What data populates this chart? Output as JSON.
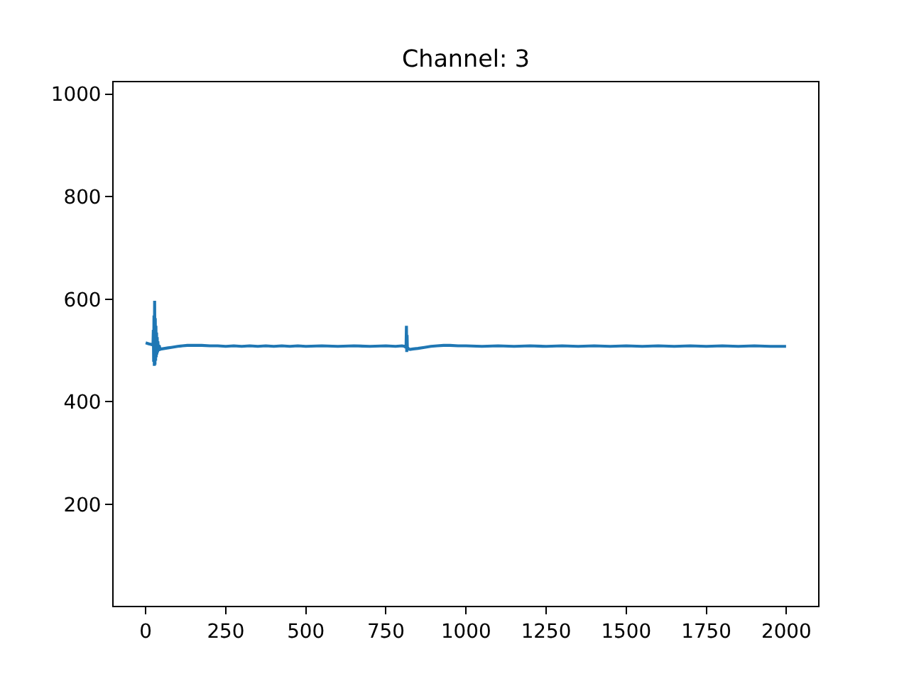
{
  "chart_data": {
    "type": "line",
    "title": "Channel: 3",
    "x": [
      0,
      5,
      10,
      15,
      20,
      23,
      24,
      25,
      26,
      27,
      28,
      29,
      30,
      31,
      32,
      33,
      34,
      35,
      36,
      37,
      38,
      40,
      42,
      45,
      50,
      60,
      70,
      80,
      90,
      100,
      115,
      130,
      150,
      175,
      200,
      225,
      250,
      275,
      300,
      325,
      350,
      375,
      400,
      425,
      450,
      475,
      500,
      550,
      600,
      650,
      700,
      750,
      780,
      800,
      808,
      812,
      813,
      814,
      815,
      816,
      817,
      818,
      820,
      825,
      835,
      850,
      870,
      890,
      910,
      930,
      950,
      975,
      1000,
      1050,
      1100,
      1150,
      1200,
      1250,
      1300,
      1350,
      1400,
      1450,
      1500,
      1550,
      1600,
      1650,
      1700,
      1750,
      1800,
      1850,
      1900,
      1950,
      1999
    ],
    "series": [
      {
        "color": "#1f77b4",
        "values": [
          515,
          514,
          513,
          512,
          511,
          512,
          540,
          478,
          568,
          470,
          597,
          472,
          563,
          480,
          548,
          487,
          535,
          492,
          526,
          496,
          518,
          499,
          510,
          502,
          503,
          504,
          505,
          506,
          507,
          508,
          509,
          510,
          510,
          510,
          509,
          509,
          508,
          509,
          508,
          509,
          508,
          509,
          508,
          509,
          508,
          509,
          508,
          509,
          508,
          509,
          508,
          509,
          508,
          509,
          508,
          506,
          510,
          548,
          497,
          530,
          500,
          506,
          503,
          502,
          503,
          504,
          506,
          508,
          509,
          510,
          510,
          509,
          509,
          508,
          509,
          508,
          509,
          508,
          509,
          508,
          509,
          508,
          509,
          508,
          509,
          508,
          509,
          508,
          509,
          508,
          509,
          508,
          508
        ]
      }
    ],
    "xlim": [
      -100,
      2099
    ],
    "ylim": [
      2,
      1023
    ],
    "xticks": [
      0,
      250,
      500,
      750,
      1000,
      1250,
      1500,
      1750,
      2000
    ],
    "yticks": [
      200,
      400,
      600,
      800,
      1000
    ],
    "grid": false,
    "line_style": "solid"
  }
}
